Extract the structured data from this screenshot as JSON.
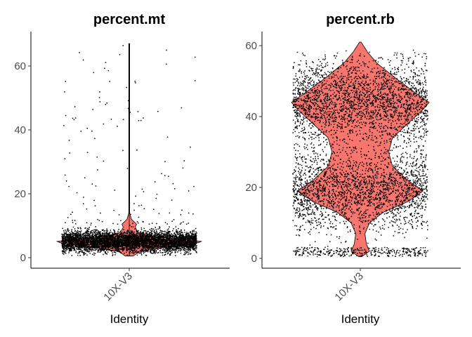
{
  "chart_data": [
    {
      "type": "violin",
      "title": "percent.mt",
      "xlabel": "Identity",
      "ylabel": "",
      "categories": [
        "10X-V3"
      ],
      "ylim": [
        -2,
        70
      ],
      "yticks": [
        0,
        20,
        40,
        60
      ],
      "fill_color": "#F8766D",
      "point_color": "#000000",
      "distribution": {
        "min": 0.5,
        "max": 67,
        "mode": 5,
        "bulk_range": [
          1,
          10
        ],
        "density": [
          [
            0,
            0.02
          ],
          [
            2,
            0.15
          ],
          [
            3.5,
            0.55
          ],
          [
            4.5,
            0.9
          ],
          [
            5,
            1.0
          ],
          [
            5.5,
            0.85
          ],
          [
            6.5,
            0.35
          ],
          [
            8,
            0.12
          ],
          [
            9.5,
            0.08
          ],
          [
            10.5,
            0.1
          ],
          [
            12,
            0.03
          ],
          [
            14,
            0.006
          ],
          [
            20,
            0.004
          ],
          [
            30,
            0.003
          ],
          [
            40,
            0.003
          ],
          [
            50,
            0.003
          ],
          [
            60,
            0.003
          ],
          [
            67,
            0.002
          ]
        ]
      }
    },
    {
      "type": "violin",
      "title": "percent.rb",
      "xlabel": "Identity",
      "ylabel": "",
      "categories": [
        "10X-V3"
      ],
      "ylim": [
        -2,
        63
      ],
      "yticks": [
        0,
        20,
        40,
        60
      ],
      "fill_color": "#F8766D",
      "point_color": "#000000",
      "distribution": {
        "min": 0.5,
        "max": 61,
        "modes": [
          19,
          44
        ],
        "low_cluster": [
          0.5,
          3
        ],
        "density": [
          [
            0.5,
            0.02
          ],
          [
            2,
            0.12
          ],
          [
            4,
            0.08
          ],
          [
            7,
            0.06
          ],
          [
            10,
            0.12
          ],
          [
            13,
            0.3
          ],
          [
            16,
            0.62
          ],
          [
            19,
            0.82
          ],
          [
            22,
            0.62
          ],
          [
            26,
            0.42
          ],
          [
            30,
            0.37
          ],
          [
            34,
            0.42
          ],
          [
            38,
            0.62
          ],
          [
            42,
            0.82
          ],
          [
            44,
            0.9
          ],
          [
            47,
            0.7
          ],
          [
            51,
            0.45
          ],
          [
            55,
            0.22
          ],
          [
            58,
            0.1
          ],
          [
            61,
            0.01
          ]
        ]
      }
    }
  ]
}
